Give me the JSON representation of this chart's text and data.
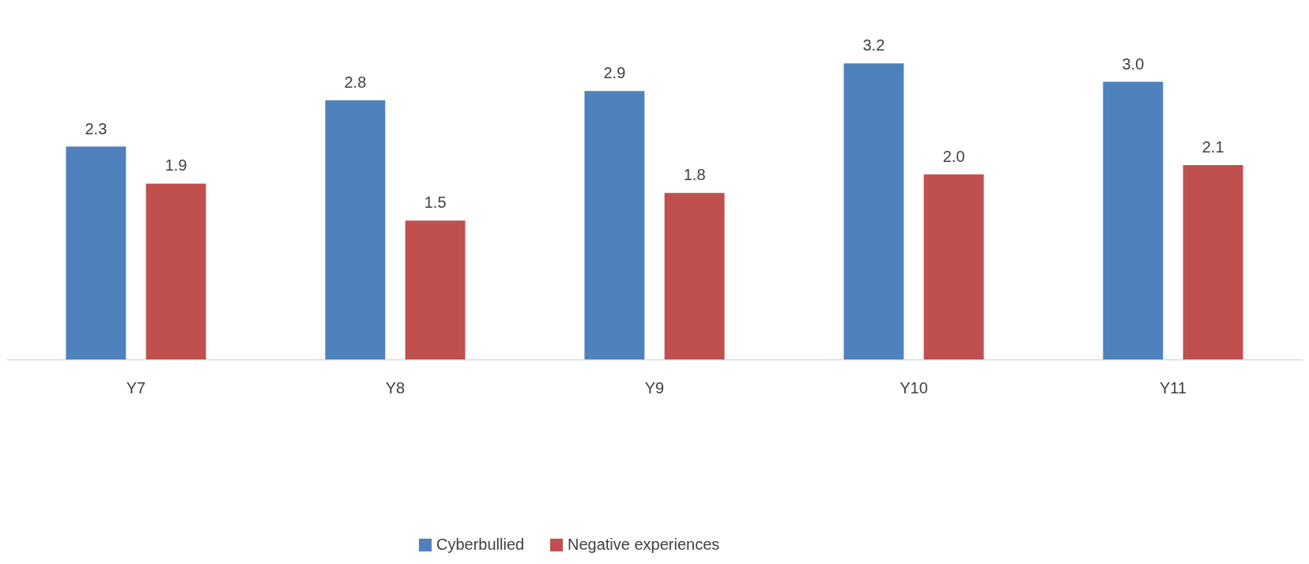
{
  "chart_data": {
    "type": "bar",
    "categories": [
      "Y7",
      "Y8",
      "Y9",
      "Y10",
      "Y11"
    ],
    "series": [
      {
        "name": "Cyberbullied",
        "color": "#4f81bd",
        "values": [
          2.3,
          2.8,
          2.9,
          3.2,
          3.0
        ],
        "value_labels": [
          "2.3",
          "2.8",
          "2.9",
          "3.2",
          "3.0"
        ]
      },
      {
        "name": "Negative experiences",
        "color": "#c0504d",
        "values": [
          1.9,
          1.5,
          1.8,
          2.0,
          2.1
        ],
        "value_labels": [
          "1.9",
          "1.5",
          "1.8",
          "2.0",
          "2.1"
        ]
      }
    ],
    "legend": "bottom"
  }
}
